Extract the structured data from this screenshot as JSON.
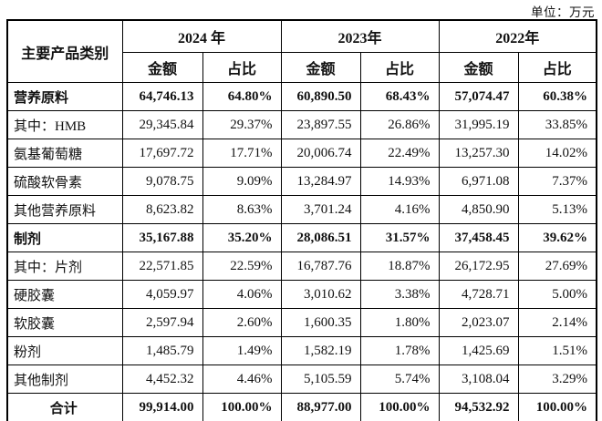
{
  "unit_label": "单位：万元",
  "table": {
    "category_header": "主要产品类别",
    "years": [
      "2024 年",
      "2023年",
      "2022年"
    ],
    "sub_headers": [
      "金额",
      "占比"
    ],
    "rows": [
      {
        "category": "营养原料",
        "bold": true,
        "center": false,
        "values": [
          "64,746.13",
          "64.80%",
          "60,890.50",
          "68.43%",
          "57,074.47",
          "60.38%"
        ]
      },
      {
        "category": "其中：HMB",
        "bold": false,
        "center": false,
        "values": [
          "29,345.84",
          "29.37%",
          "23,897.55",
          "26.86%",
          "31,995.19",
          "33.85%"
        ]
      },
      {
        "category": "氨基葡萄糖",
        "bold": false,
        "center": false,
        "values": [
          "17,697.72",
          "17.71%",
          "20,006.74",
          "22.49%",
          "13,257.30",
          "14.02%"
        ]
      },
      {
        "category": "硫酸软骨素",
        "bold": false,
        "center": false,
        "values": [
          "9,078.75",
          "9.09%",
          "13,284.97",
          "14.93%",
          "6,971.08",
          "7.37%"
        ]
      },
      {
        "category": "其他营养原料",
        "bold": false,
        "center": false,
        "values": [
          "8,623.82",
          "8.63%",
          "3,701.24",
          "4.16%",
          "4,850.90",
          "5.13%"
        ]
      },
      {
        "category": "制剂",
        "bold": true,
        "center": false,
        "values": [
          "35,167.88",
          "35.20%",
          "28,086.51",
          "31.57%",
          "37,458.45",
          "39.62%"
        ]
      },
      {
        "category": "其中：片剂",
        "bold": false,
        "center": false,
        "values": [
          "22,571.85",
          "22.59%",
          "16,787.76",
          "18.87%",
          "26,172.95",
          "27.69%"
        ]
      },
      {
        "category": "硬胶囊",
        "bold": false,
        "center": false,
        "values": [
          "4,059.97",
          "4.06%",
          "3,010.62",
          "3.38%",
          "4,728.71",
          "5.00%"
        ]
      },
      {
        "category": "软胶囊",
        "bold": false,
        "center": false,
        "values": [
          "2,597.94",
          "2.60%",
          "1,600.35",
          "1.80%",
          "2,023.07",
          "2.14%"
        ]
      },
      {
        "category": "粉剂",
        "bold": false,
        "center": false,
        "values": [
          "1,485.79",
          "1.49%",
          "1,582.19",
          "1.78%",
          "1,425.69",
          "1.51%"
        ]
      },
      {
        "category": "其他制剂",
        "bold": false,
        "center": false,
        "values": [
          "4,452.32",
          "4.46%",
          "5,105.59",
          "5.74%",
          "3,108.04",
          "3.29%"
        ]
      },
      {
        "category": "合计",
        "bold": true,
        "center": true,
        "values": [
          "99,914.00",
          "100.00%",
          "88,977.00",
          "100.00%",
          "94,532.92",
          "100.00%"
        ]
      }
    ]
  }
}
